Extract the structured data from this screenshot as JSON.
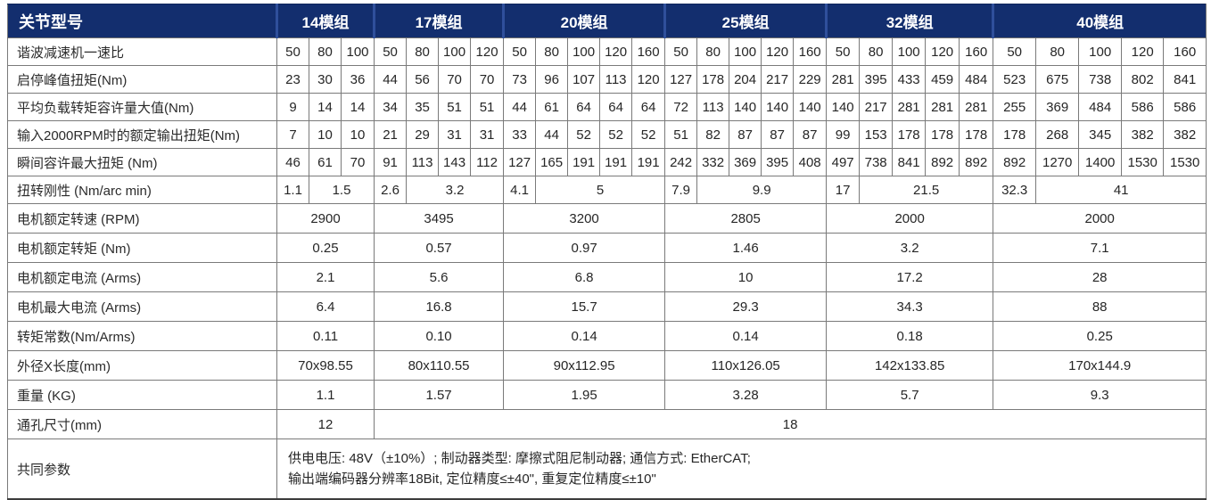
{
  "table": {
    "header": {
      "corner_label": "关节型号",
      "groups": [
        {
          "label": "14模组",
          "cols": 3
        },
        {
          "label": "17模组",
          "cols": 4
        },
        {
          "label": "20模组",
          "cols": 5
        },
        {
          "label": "25模组",
          "cols": 5
        },
        {
          "label": "32模组",
          "cols": 5
        },
        {
          "label": "40模组",
          "cols": 5
        }
      ]
    },
    "ratio_row": {
      "label": "谐波减速机一速比",
      "cells": [
        [
          "50",
          "80",
          "100"
        ],
        [
          "50",
          "80",
          "100",
          "120"
        ],
        [
          "50",
          "80",
          "100",
          "120",
          "160"
        ],
        [
          "50",
          "80",
          "100",
          "120",
          "160"
        ],
        [
          "50",
          "80",
          "100",
          "120",
          "160"
        ],
        [
          "50",
          "80",
          "100",
          "120",
          "160"
        ]
      ]
    },
    "per_ratio_rows": [
      {
        "label": "启停峰值扭矩(Nm)",
        "cells": [
          [
            "23",
            "30",
            "36"
          ],
          [
            "44",
            "56",
            "70",
            "70"
          ],
          [
            "73",
            "96",
            "107",
            "113",
            "120"
          ],
          [
            "127",
            "178",
            "204",
            "217",
            "229"
          ],
          [
            "281",
            "395",
            "433",
            "459",
            "484"
          ],
          [
            "523",
            "675",
            "738",
            "802",
            "841"
          ]
        ]
      },
      {
        "label": "平均负载转矩容许量大值(Nm)",
        "cells": [
          [
            "9",
            "14",
            "14"
          ],
          [
            "34",
            "35",
            "51",
            "51"
          ],
          [
            "44",
            "61",
            "64",
            "64",
            "64"
          ],
          [
            "72",
            "113",
            "140",
            "140",
            "140"
          ],
          [
            "140",
            "217",
            "281",
            "281",
            "281"
          ],
          [
            "255",
            "369",
            "484",
            "586",
            "586"
          ]
        ]
      },
      {
        "label": "输入2000RPM时的额定输出扭矩(Nm)",
        "cells": [
          [
            "7",
            "10",
            "10"
          ],
          [
            "21",
            "29",
            "31",
            "31"
          ],
          [
            "33",
            "44",
            "52",
            "52",
            "52"
          ],
          [
            "51",
            "82",
            "87",
            "87",
            "87"
          ],
          [
            "99",
            "153",
            "178",
            "178",
            "178"
          ],
          [
            "178",
            "268",
            "345",
            "382",
            "382"
          ]
        ]
      },
      {
        "label": "瞬间容许最大扭矩 (Nm)",
        "cells": [
          [
            "46",
            "61",
            "70"
          ],
          [
            "91",
            "113",
            "143",
            "112"
          ],
          [
            "127",
            "165",
            "191",
            "191",
            "191"
          ],
          [
            "242",
            "332",
            "369",
            "395",
            "408"
          ],
          [
            "497",
            "738",
            "841",
            "892",
            "892"
          ],
          [
            "892",
            "1270",
            "1400",
            "1530",
            "1530"
          ]
        ]
      }
    ],
    "stiffness_row": {
      "label": "扭转刚性 (Nm/arc min)",
      "cells": [
        [
          "1.1",
          "1.5"
        ],
        [
          "2.6",
          "3.2"
        ],
        [
          "4.1",
          "5"
        ],
        [
          "7.9",
          "9.9"
        ],
        [
          "17",
          "21.5"
        ],
        [
          "32.3",
          "41"
        ]
      ]
    },
    "group_rows": [
      {
        "label": "电机额定转速 (RPM)",
        "values": [
          "2900",
          "3495",
          "3200",
          "2805",
          "2000",
          "2000"
        ]
      },
      {
        "label": "电机额定转矩 (Nm)",
        "values": [
          "0.25",
          "0.57",
          "0.97",
          "1.46",
          "3.2",
          "7.1"
        ]
      },
      {
        "label": "电机额定电流 (Arms)",
        "values": [
          "2.1",
          "5.6",
          "6.8",
          "10",
          "17.2",
          "28"
        ]
      },
      {
        "label": "电机最大电流 (Arms)",
        "values": [
          "6.4",
          "16.8",
          "15.7",
          "29.3",
          "34.3",
          "88"
        ]
      },
      {
        "label": "转矩常数(Nm/Arms)",
        "values": [
          "0.11",
          "0.10",
          "0.14",
          "0.14",
          "0.18",
          "0.25"
        ]
      },
      {
        "label": "外径X长度(mm)",
        "values": [
          "70x98.55",
          "80x110.55",
          "90x112.95",
          "110x126.05",
          "142x133.85",
          "170x144.9"
        ]
      },
      {
        "label": "重量 (KG)",
        "values": [
          "1.1",
          "1.57",
          "1.95",
          "3.28",
          "5.7",
          "9.3"
        ]
      }
    ],
    "bore_row": {
      "label": "通孔尺寸(mm)",
      "first_value": "12",
      "rest_value": "18"
    },
    "common_row": {
      "label": "共同参数",
      "line1": "供电电压: 48V（±10%）; 制动器类型: 摩擦式阻尼制动器; 通信方式: EtherCAT;",
      "line2": "输出端编码器分辨率18Bit, 定位精度≤±40\", 重复定位精度≤±10\""
    },
    "colors": {
      "header_bg": "#132e6e",
      "header_divider": "#2f4f9b",
      "header_text": "#ffffff",
      "grid_border": "#7a7a7a",
      "body_text": "#262626"
    }
  }
}
